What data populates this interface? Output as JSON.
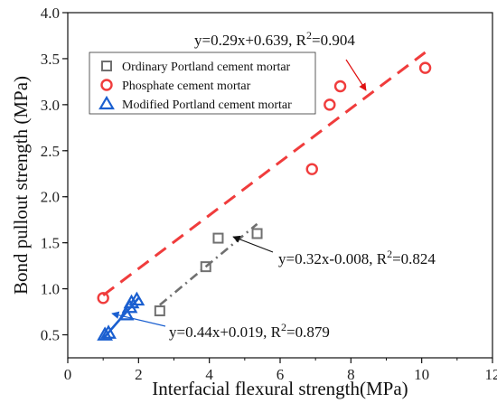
{
  "chart_data": {
    "type": "scatter",
    "xlabel": "Interfacial flexural strength(MPa)",
    "ylabel": "Bond pullout strength (MPa)",
    "xlim": [
      0,
      12
    ],
    "ylim": [
      0.25,
      4.0
    ],
    "xticks": [
      0,
      2,
      4,
      6,
      8,
      10,
      12
    ],
    "yticks": [
      0.5,
      1.0,
      1.5,
      2.0,
      2.5,
      3.0,
      3.5,
      4.0
    ],
    "xtick_labels": [
      "0",
      "2",
      "4",
      "6",
      "8",
      "10",
      "12"
    ],
    "ytick_labels": [
      "0.5",
      "1.0",
      "1.5",
      "2.0",
      "2.5",
      "3.0",
      "3.5",
      "4.0"
    ],
    "grid": false,
    "legend_placement": "upper-left",
    "series": [
      {
        "name": "Ordinary Portland cement mortar",
        "marker": "square",
        "color": "#707070",
        "points": [
          [
            2.6,
            0.76
          ],
          [
            3.9,
            1.24
          ],
          [
            4.25,
            1.55
          ],
          [
            5.35,
            1.6
          ]
        ],
        "fit": {
          "slope": 0.32,
          "intercept": -0.008,
          "x_range": [
            2.6,
            5.35
          ],
          "dash": "dashdot"
        }
      },
      {
        "name": "Phosphate cement mortar",
        "marker": "circle",
        "color": "#f03c3c",
        "points": [
          [
            1.0,
            0.9
          ],
          [
            6.9,
            2.3
          ],
          [
            7.4,
            3.0
          ],
          [
            7.7,
            3.2
          ],
          [
            10.1,
            3.4
          ]
        ],
        "fit": {
          "slope": 0.29,
          "intercept": 0.639,
          "x_range": [
            1.0,
            10.1
          ],
          "dash": "dash"
        }
      },
      {
        "name": "Modified Portland cement mortar",
        "marker": "triangle",
        "color": "#1a5fd0",
        "points": [
          [
            1.05,
            0.5
          ],
          [
            1.15,
            0.52
          ],
          [
            1.65,
            0.72
          ],
          [
            1.75,
            0.8
          ],
          [
            1.8,
            0.85
          ],
          [
            1.95,
            0.88
          ]
        ],
        "fit": {
          "slope": 0.44,
          "intercept": 0.019,
          "x_range": [
            1.0,
            2.0
          ],
          "dash": "solid"
        }
      }
    ],
    "annotations": [
      {
        "series": 1,
        "text_main": "y=0.29x+0.639, R",
        "sup": "2",
        "text_tail": "=0.904",
        "arrow_color": "#e01010"
      },
      {
        "series": 0,
        "text_main": "y=0.32x-0.008, R",
        "sup": "2",
        "text_tail": "=0.824",
        "arrow_color": "#111111"
      },
      {
        "series": 2,
        "text_main": "y=0.44x+0.019, R",
        "sup": "2",
        "text_tail": "=0.879",
        "arrow_color": "#1a5fd0"
      }
    ]
  }
}
